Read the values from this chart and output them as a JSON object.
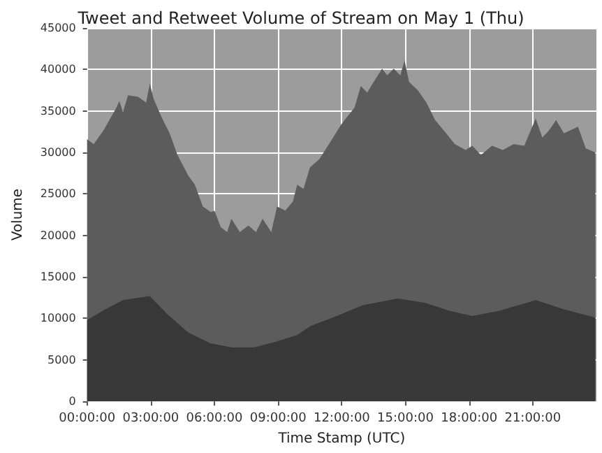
{
  "chart_data": {
    "type": "area",
    "title": "Tweet and Retweet Volume of Stream on May 1 (Thu)",
    "xlabel": "Time Stamp (UTC)",
    "ylabel": "Volume",
    "series": [
      {
        "color": "#5c5c5c",
        "x": [
          0,
          0.31,
          0.76,
          1.38,
          1.52,
          1.69,
          1.93,
          2.41,
          2.78,
          2.96,
          3.13,
          3.54,
          3.89,
          4.26,
          4.77,
          5.08,
          5.45,
          5.84,
          6.0,
          6.3,
          6.6,
          6.8,
          7.2,
          7.6,
          7.96,
          8.27,
          8.68,
          8.95,
          9.34,
          9.7,
          9.9,
          10.2,
          10.5,
          10.95,
          11.47,
          11.98,
          12.6,
          12.9,
          13.2,
          13.5,
          13.9,
          14.14,
          14.45,
          14.76,
          14.96,
          15.17,
          15.58,
          15.99,
          16.4,
          16.92,
          17.33,
          17.84,
          18.15,
          18.56,
          19.08,
          19.59,
          20.1,
          20.6,
          21.14,
          21.45,
          21.75,
          22.1,
          22.47,
          23.13,
          23.5,
          23.95
        ],
        "values": [
          31600,
          31000,
          32600,
          35400,
          36200,
          34900,
          36900,
          36700,
          36000,
          38300,
          36500,
          34100,
          32300,
          29700,
          27200,
          26100,
          23500,
          22800,
          23000,
          21000,
          20400,
          22000,
          20400,
          21200,
          20400,
          22000,
          20400,
          23500,
          23000,
          24100,
          26100,
          25600,
          28200,
          29200,
          31300,
          33400,
          35400,
          38000,
          37200,
          38500,
          40100,
          39300,
          40100,
          39300,
          41100,
          38500,
          37500,
          36000,
          33900,
          32300,
          31000,
          30300,
          30800,
          29700,
          30800,
          30300,
          31000,
          30800,
          34100,
          31800,
          32600,
          33900,
          32300,
          33100,
          30500,
          30000
        ]
      },
      {
        "color": "#383838",
        "x": [
          0,
          0.86,
          1.69,
          2.96,
          3.74,
          4.77,
          5.8,
          6.83,
          7.86,
          8.9,
          9.9,
          10.54,
          11.77,
          13.0,
          14.65,
          15.9,
          17.1,
          18.15,
          19.4,
          21.14,
          22.47,
          23.95
        ],
        "values": [
          9800,
          11100,
          12200,
          12700,
          10600,
          8300,
          7000,
          6500,
          6500,
          7200,
          8000,
          9100,
          10300,
          11600,
          12400,
          11900,
          10900,
          10300,
          10900,
          12200,
          11100,
          10100
        ]
      }
    ],
    "xlim": [
      0,
      24
    ],
    "xticks": [
      {
        "value": 0,
        "label": "00:00:00"
      },
      {
        "value": 3,
        "label": "03:00:00"
      },
      {
        "value": 6,
        "label": "06:00:00"
      },
      {
        "value": 9,
        "label": "09:00:00"
      },
      {
        "value": 12,
        "label": "12:00:00"
      },
      {
        "value": 15,
        "label": "15:00:00"
      },
      {
        "value": 18,
        "label": "18:00:00"
      },
      {
        "value": 21,
        "label": "21:00:00"
      }
    ],
    "ylim": [
      0,
      45000
    ],
    "yticks": [
      0,
      5000,
      10000,
      15000,
      20000,
      25000,
      30000,
      35000,
      40000,
      45000
    ],
    "grid": true
  }
}
